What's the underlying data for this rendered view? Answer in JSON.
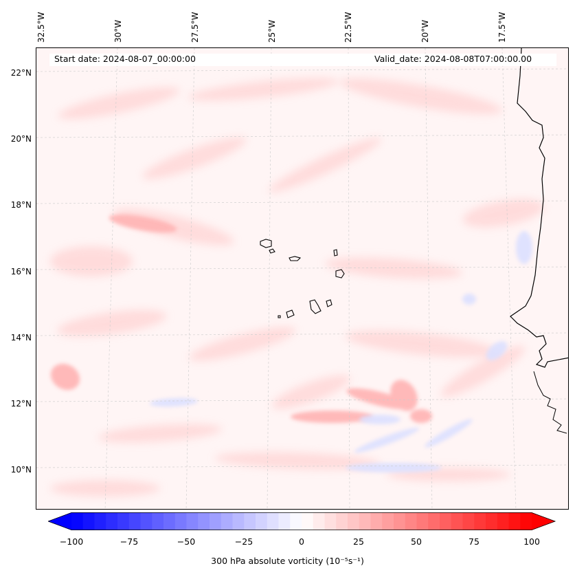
{
  "header": {
    "start_date": "Start date: 2024-08-07_00:00:00",
    "valid_date": "Valid_date: 2024-08-08T07:00:00.00"
  },
  "longitude_labels": [
    "32.5°W",
    "30°W",
    "27.5°W",
    "25°W",
    "22.5°W",
    "20°W",
    "17.5°W"
  ],
  "latitude_labels": [
    "22°N",
    "20°N",
    "18°N",
    "16°N",
    "14°N",
    "12°N",
    "10°N"
  ],
  "colorbar": {
    "label": "300 hPa absolute vorticity (10⁻⁵s⁻¹)",
    "ticks": [
      "−100",
      "−75",
      "−50",
      "−25",
      "0",
      "25",
      "50",
      "75",
      "100"
    ],
    "range": [
      -100,
      100
    ],
    "colormap": "bwr",
    "extend": "both"
  },
  "colors": {
    "negative_max": "#0000ff",
    "neutral": "#ffffff",
    "positive_max": "#ff0000",
    "coastline": "#000000"
  }
}
